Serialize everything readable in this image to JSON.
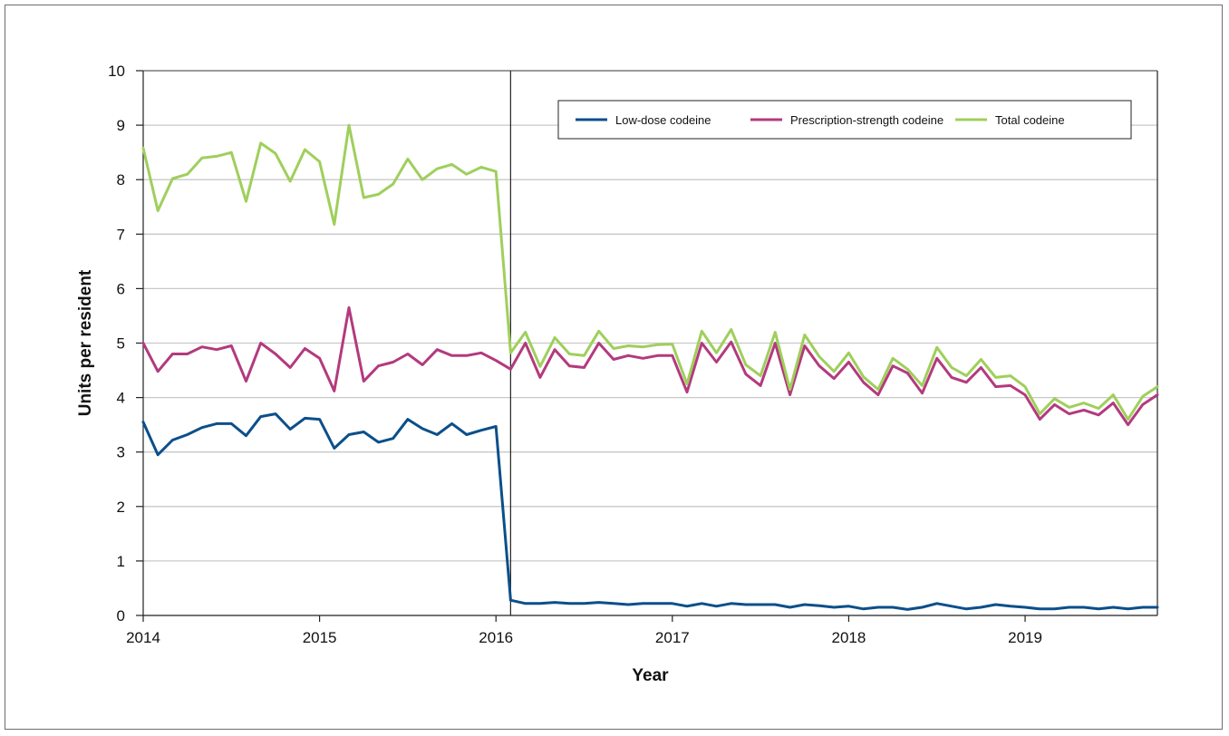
{
  "chart_data": {
    "type": "line",
    "xlabel": "Year",
    "ylabel": "Units per resident",
    "xlim": [
      2014,
      2019.75
    ],
    "ylim": [
      0,
      10
    ],
    "x_ticks": [
      "2014",
      "2015",
      "2016",
      "2017",
      "2018",
      "2019"
    ],
    "y_ticks": [
      "0",
      "1",
      "2",
      "3",
      "4",
      "5",
      "6",
      "7",
      "8",
      "9",
      "10"
    ],
    "grid": "horizontal",
    "legend_placement": "top-right",
    "reference_line_x": 2016.083,
    "series": [
      {
        "name": "Low-dose codeine",
        "color": "#0b4f8a",
        "values": [
          3.55,
          2.95,
          3.22,
          3.32,
          3.45,
          3.52,
          3.52,
          3.3,
          3.65,
          3.7,
          3.42,
          3.62,
          3.6,
          3.07,
          3.32,
          3.37,
          3.18,
          3.25,
          3.6,
          3.43,
          3.32,
          3.52,
          3.32,
          3.4,
          3.47,
          0.28,
          0.22,
          0.22,
          0.24,
          0.22,
          0.22,
          0.24,
          0.22,
          0.2,
          0.22,
          0.22,
          0.22,
          0.17,
          0.22,
          0.17,
          0.22,
          0.2,
          0.2,
          0.2,
          0.15,
          0.2,
          0.18,
          0.15,
          0.17,
          0.12,
          0.15,
          0.15,
          0.11,
          0.15,
          0.22,
          0.17,
          0.12,
          0.15,
          0.2,
          0.17,
          0.15,
          0.12,
          0.12,
          0.15,
          0.15,
          0.12,
          0.15,
          0.12,
          0.15,
          0.15
        ]
      },
      {
        "name": "Prescription-strength codeine",
        "color": "#b33a7d",
        "values": [
          5.0,
          4.48,
          4.8,
          4.8,
          4.93,
          4.88,
          4.95,
          4.3,
          5.0,
          4.8,
          4.55,
          4.9,
          4.72,
          4.12,
          5.65,
          4.3,
          4.58,
          4.65,
          4.8,
          4.6,
          4.88,
          4.77,
          4.77,
          4.82,
          4.68,
          4.52,
          5.0,
          4.37,
          4.88,
          4.58,
          4.55,
          5.0,
          4.7,
          4.77,
          4.72,
          4.77,
          4.77,
          4.1,
          5.0,
          4.65,
          5.02,
          4.43,
          4.22,
          5.0,
          4.05,
          4.95,
          4.58,
          4.35,
          4.65,
          4.28,
          4.05,
          4.58,
          4.45,
          4.08,
          4.72,
          4.37,
          4.28,
          4.55,
          4.2,
          4.22,
          4.05,
          3.6,
          3.87,
          3.7,
          3.77,
          3.68,
          3.9,
          3.5,
          3.87,
          4.05
        ]
      },
      {
        "name": "Total codeine",
        "color": "#9fcf5c",
        "values": [
          8.58,
          7.43,
          8.02,
          8.1,
          8.4,
          8.43,
          8.5,
          7.6,
          8.67,
          8.48,
          7.97,
          8.55,
          8.33,
          7.18,
          9.0,
          7.67,
          7.73,
          7.92,
          8.38,
          8.0,
          8.2,
          8.28,
          8.1,
          8.23,
          8.15,
          4.82,
          5.2,
          4.57,
          5.1,
          4.8,
          4.77,
          5.22,
          4.9,
          4.95,
          4.93,
          4.97,
          4.98,
          4.25,
          5.22,
          4.82,
          5.25,
          4.6,
          4.4,
          5.2,
          4.15,
          5.15,
          4.75,
          4.48,
          4.82,
          4.38,
          4.15,
          4.72,
          4.52,
          4.22,
          4.92,
          4.55,
          4.4,
          4.7,
          4.37,
          4.4,
          4.2,
          3.7,
          3.98,
          3.82,
          3.9,
          3.8,
          4.05,
          3.6,
          4.02,
          4.2
        ]
      }
    ]
  }
}
